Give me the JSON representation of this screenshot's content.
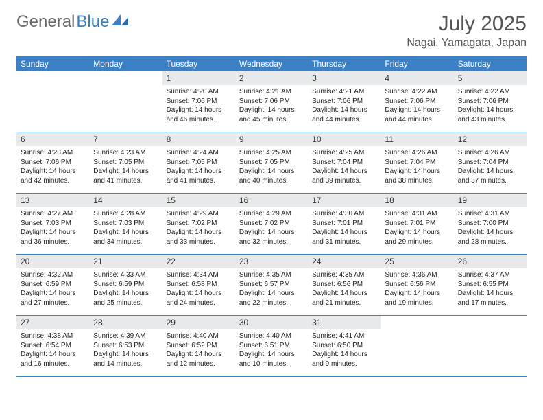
{
  "logo": {
    "text_gray": "General",
    "text_blue": "Blue"
  },
  "title": "July 2025",
  "location": "Nagai, Yamagata, Japan",
  "colors": {
    "header_bg": "#3b7fc4",
    "daynum_bg": "#e8e9ea",
    "border": "#3b7fc4",
    "logo_gray": "#6b6b6b",
    "logo_blue": "#3b7fc4",
    "text": "#222222",
    "bg": "#ffffff"
  },
  "day_names": [
    "Sunday",
    "Monday",
    "Tuesday",
    "Wednesday",
    "Thursday",
    "Friday",
    "Saturday"
  ],
  "weeks": [
    [
      null,
      null,
      {
        "n": "1",
        "sr": "4:20 AM",
        "ss": "7:06 PM",
        "dl": "14 hours and 46 minutes."
      },
      {
        "n": "2",
        "sr": "4:21 AM",
        "ss": "7:06 PM",
        "dl": "14 hours and 45 minutes."
      },
      {
        "n": "3",
        "sr": "4:21 AM",
        "ss": "7:06 PM",
        "dl": "14 hours and 44 minutes."
      },
      {
        "n": "4",
        "sr": "4:22 AM",
        "ss": "7:06 PM",
        "dl": "14 hours and 44 minutes."
      },
      {
        "n": "5",
        "sr": "4:22 AM",
        "ss": "7:06 PM",
        "dl": "14 hours and 43 minutes."
      }
    ],
    [
      {
        "n": "6",
        "sr": "4:23 AM",
        "ss": "7:06 PM",
        "dl": "14 hours and 42 minutes."
      },
      {
        "n": "7",
        "sr": "4:23 AM",
        "ss": "7:05 PM",
        "dl": "14 hours and 41 minutes."
      },
      {
        "n": "8",
        "sr": "4:24 AM",
        "ss": "7:05 PM",
        "dl": "14 hours and 41 minutes."
      },
      {
        "n": "9",
        "sr": "4:25 AM",
        "ss": "7:05 PM",
        "dl": "14 hours and 40 minutes."
      },
      {
        "n": "10",
        "sr": "4:25 AM",
        "ss": "7:04 PM",
        "dl": "14 hours and 39 minutes."
      },
      {
        "n": "11",
        "sr": "4:26 AM",
        "ss": "7:04 PM",
        "dl": "14 hours and 38 minutes."
      },
      {
        "n": "12",
        "sr": "4:26 AM",
        "ss": "7:04 PM",
        "dl": "14 hours and 37 minutes."
      }
    ],
    [
      {
        "n": "13",
        "sr": "4:27 AM",
        "ss": "7:03 PM",
        "dl": "14 hours and 36 minutes."
      },
      {
        "n": "14",
        "sr": "4:28 AM",
        "ss": "7:03 PM",
        "dl": "14 hours and 34 minutes."
      },
      {
        "n": "15",
        "sr": "4:29 AM",
        "ss": "7:02 PM",
        "dl": "14 hours and 33 minutes."
      },
      {
        "n": "16",
        "sr": "4:29 AM",
        "ss": "7:02 PM",
        "dl": "14 hours and 32 minutes."
      },
      {
        "n": "17",
        "sr": "4:30 AM",
        "ss": "7:01 PM",
        "dl": "14 hours and 31 minutes."
      },
      {
        "n": "18",
        "sr": "4:31 AM",
        "ss": "7:01 PM",
        "dl": "14 hours and 29 minutes."
      },
      {
        "n": "19",
        "sr": "4:31 AM",
        "ss": "7:00 PM",
        "dl": "14 hours and 28 minutes."
      }
    ],
    [
      {
        "n": "20",
        "sr": "4:32 AM",
        "ss": "6:59 PM",
        "dl": "14 hours and 27 minutes."
      },
      {
        "n": "21",
        "sr": "4:33 AM",
        "ss": "6:59 PM",
        "dl": "14 hours and 25 minutes."
      },
      {
        "n": "22",
        "sr": "4:34 AM",
        "ss": "6:58 PM",
        "dl": "14 hours and 24 minutes."
      },
      {
        "n": "23",
        "sr": "4:35 AM",
        "ss": "6:57 PM",
        "dl": "14 hours and 22 minutes."
      },
      {
        "n": "24",
        "sr": "4:35 AM",
        "ss": "6:56 PM",
        "dl": "14 hours and 21 minutes."
      },
      {
        "n": "25",
        "sr": "4:36 AM",
        "ss": "6:56 PM",
        "dl": "14 hours and 19 minutes."
      },
      {
        "n": "26",
        "sr": "4:37 AM",
        "ss": "6:55 PM",
        "dl": "14 hours and 17 minutes."
      }
    ],
    [
      {
        "n": "27",
        "sr": "4:38 AM",
        "ss": "6:54 PM",
        "dl": "14 hours and 16 minutes."
      },
      {
        "n": "28",
        "sr": "4:39 AM",
        "ss": "6:53 PM",
        "dl": "14 hours and 14 minutes."
      },
      {
        "n": "29",
        "sr": "4:40 AM",
        "ss": "6:52 PM",
        "dl": "14 hours and 12 minutes."
      },
      {
        "n": "30",
        "sr": "4:40 AM",
        "ss": "6:51 PM",
        "dl": "14 hours and 10 minutes."
      },
      {
        "n": "31",
        "sr": "4:41 AM",
        "ss": "6:50 PM",
        "dl": "14 hours and 9 minutes."
      },
      null,
      null
    ]
  ],
  "labels": {
    "sunrise": "Sunrise:",
    "sunset": "Sunset:",
    "daylight": "Daylight:"
  }
}
